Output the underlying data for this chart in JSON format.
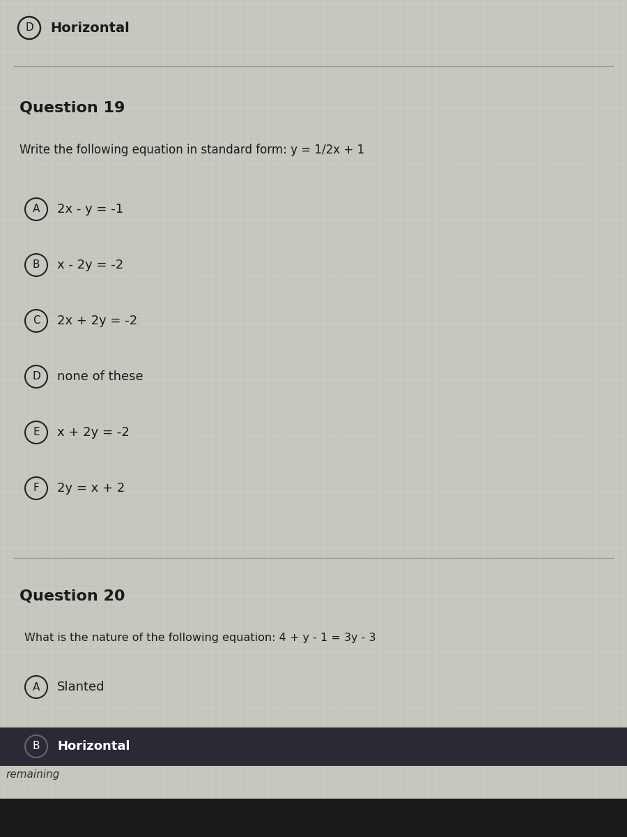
{
  "bg_color": "#c8c8c0",
  "text_color": "#1a1a1a",
  "top_option_label": "D",
  "top_option_text": "Horizontal",
  "q19_title": "Question 19",
  "q19_prompt": "Write the following equation in standard form: y = 1/2x + 1",
  "q19_options": [
    {
      "label": "A",
      "text": "2x - y = -1"
    },
    {
      "label": "B",
      "text": "x - 2y = -2"
    },
    {
      "label": "C",
      "text": "2x + 2y = -2"
    },
    {
      "label": "D",
      "text": "none of these"
    },
    {
      "label": "E",
      "text": "x + 2y = -2"
    },
    {
      "label": "F",
      "text": "2y = x + 2"
    }
  ],
  "q20_title": "Question 20",
  "q20_prompt": "What is the nature of the following equation: 4 + y - 1 = 3y - 3",
  "q20_options": [
    {
      "label": "A",
      "text": "Slanted"
    },
    {
      "label": "B",
      "text": "Horizontal",
      "highlighted": true
    }
  ],
  "footer_text": "remaining",
  "separator_color": "#999999",
  "highlight_color": "#2a2a35",
  "highlight_text_color": "#ffffff",
  "circle_edgecolor": "#222222",
  "circle_facecolor": "#c8c8c0",
  "grid_color": "#aaaaaa",
  "grid_alpha": 0.35,
  "taskbar_color": "#1a1a1a"
}
